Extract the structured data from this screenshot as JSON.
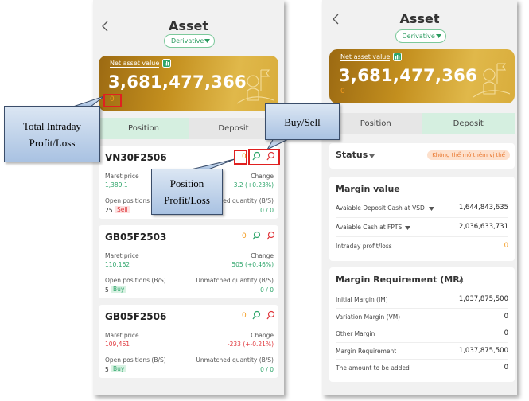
{
  "callouts": [
    "Total Intraday Profit/Loss",
    "Position Profit/Loss",
    "Buy/Sell"
  ],
  "screens": [
    {
      "title": "Asset",
      "dropdown": "Derivative",
      "net_asset_label": "Net asset value",
      "net_asset_value": "3,681,477,366",
      "intraday_pl": "0",
      "tabs": [
        "Position",
        "Deposit"
      ],
      "positions": [
        {
          "symbol": "VN30F2506",
          "pl": "0",
          "price_label": "Maret price",
          "price": "1,389.1",
          "change_label": "Change",
          "change": "3.2 (+0.23%)",
          "open_label": "Open positions (B/S)",
          "open_qty": "25",
          "side": "Sell",
          "unmatched_label": "Unmatched quantity (B/S)",
          "unmatched": "0 / 0"
        },
        {
          "symbol": "GB05F2503",
          "pl": "0",
          "price_label": "Maret price",
          "price": "110,162",
          "change_label": "Change",
          "change": "505 (+0.46%)",
          "open_label": "Open positions (B/S)",
          "open_qty": "5",
          "side": "Buy",
          "unmatched_label": "Unmatched quantity (B/S)",
          "unmatched": "0 / 0"
        },
        {
          "symbol": "GB05F2506",
          "pl": "0",
          "price_label": "Maret price",
          "price": "109,461",
          "change_label": "Change",
          "change": "-233 (+-0.21%)",
          "open_label": "Open positions (B/S)",
          "open_qty": "5",
          "side": "Buy",
          "unmatched_label": "Unmatched quantity (B/S)",
          "unmatched": "0 / 0"
        }
      ]
    },
    {
      "title": "Asset",
      "dropdown": "Derivative",
      "net_asset_label": "Net asset value",
      "net_asset_value": "3,681,477,366",
      "intraday_pl": "0",
      "tabs": [
        "Position",
        "Deposit"
      ],
      "status_label": "Status",
      "status_badge": "Không thể mở thêm vị thế",
      "margin_value": {
        "title": "Margin value",
        "rows": [
          {
            "label": "Avaiable Deposit Cash at VSD",
            "value": "1,644,843,635"
          },
          {
            "label": "Avaiable Cash at FPTS",
            "value": "2,036,633,731"
          },
          {
            "label": "Intraday profit/loss",
            "value": "0"
          }
        ]
      },
      "margin_requirement": {
        "title": "Margin Requirement (MR)",
        "rows": [
          {
            "label": "Initial Margin (IM)",
            "value": "1,037,875,500"
          },
          {
            "label": "Variation Margin (VM)",
            "value": "0"
          },
          {
            "label": "Other Margin",
            "value": "0"
          },
          {
            "label": "Margin Requirement",
            "value": "1,037,875,500"
          },
          {
            "label": "The amount to be added",
            "value": "0"
          }
        ]
      }
    }
  ]
}
